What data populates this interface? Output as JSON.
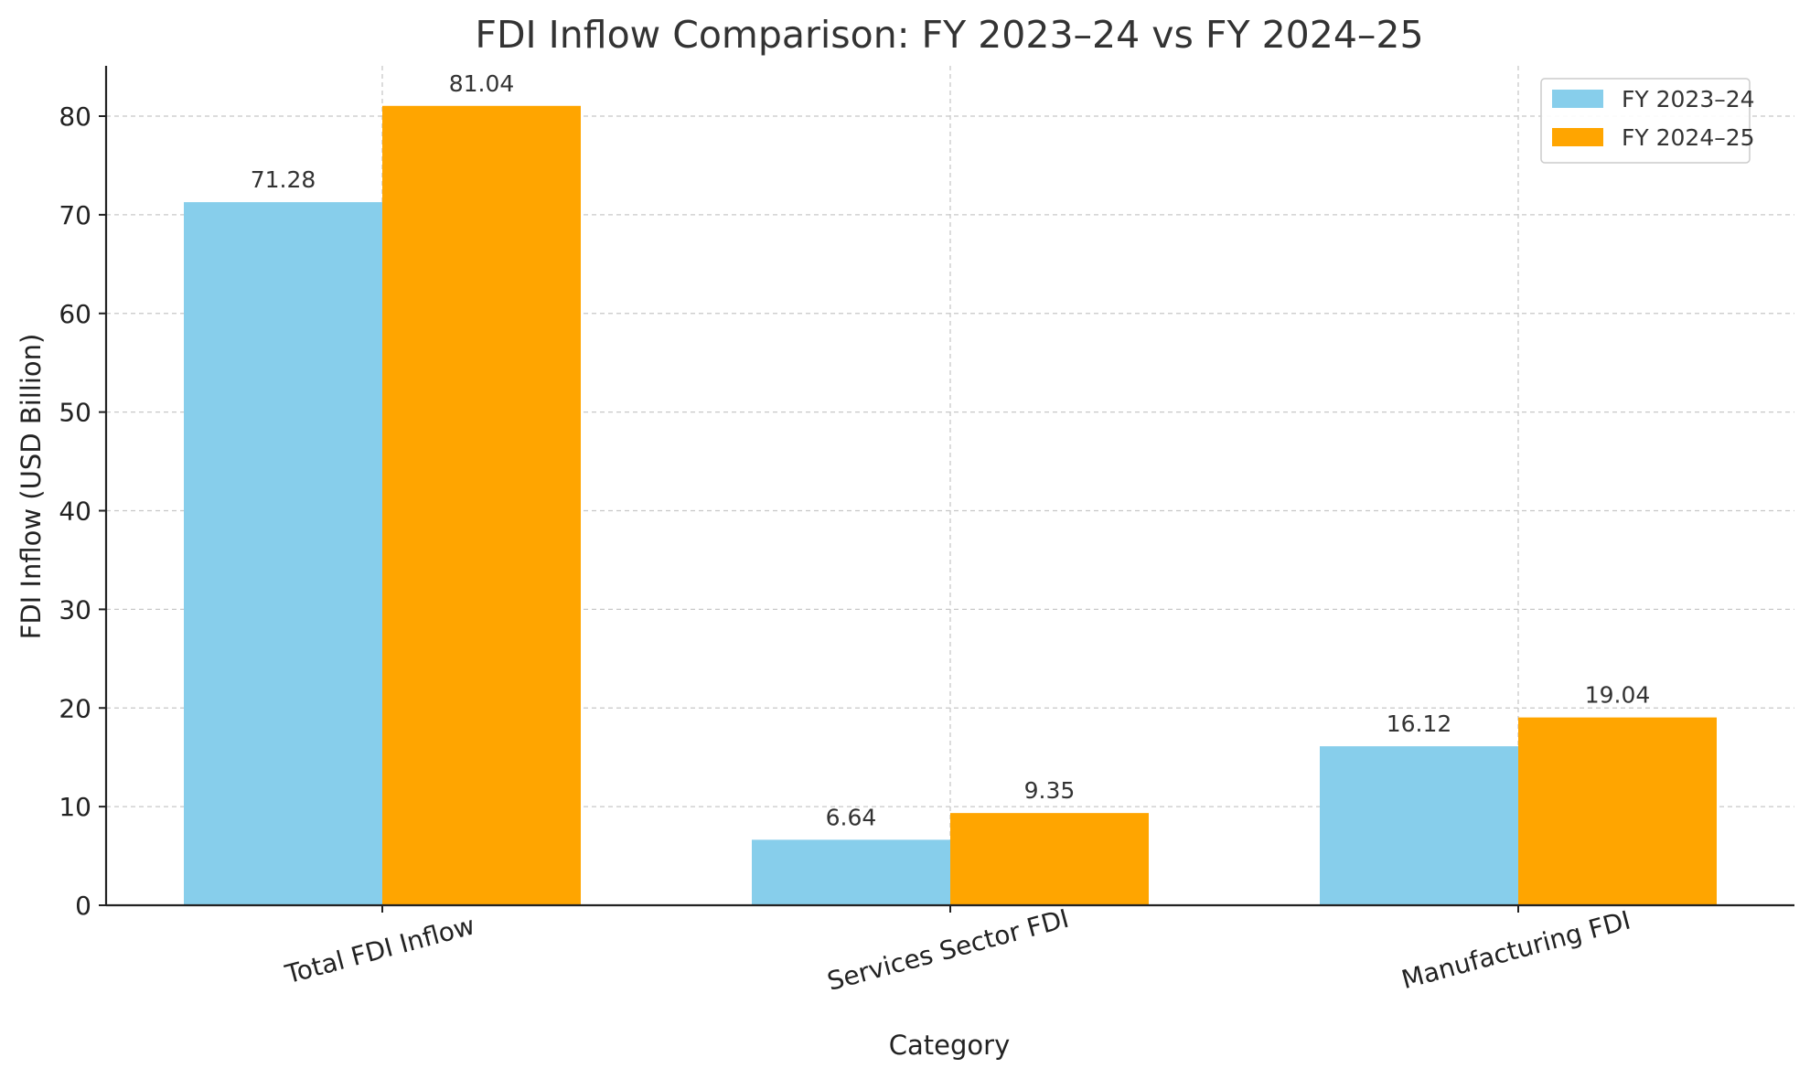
{
  "chart_data": {
    "type": "bar",
    "title": "FDI Inflow Comparison: FY 2023–24 vs FY 2024–25",
    "xlabel": "Category",
    "ylabel": "FDI Inflow (USD Billion)",
    "categories": [
      "Total FDI Inflow",
      "Services Sector FDI",
      "Manufacturing FDI"
    ],
    "series": [
      {
        "name": "FY 2023–24",
        "color": "#87ceeb",
        "values": [
          71.28,
          6.64,
          16.12
        ],
        "labels": [
          "71.28",
          "6.64",
          "16.12"
        ]
      },
      {
        "name": "FY 2024–25",
        "color": "#ffa500",
        "values": [
          81.04,
          9.35,
          19.04
        ],
        "labels": [
          "81.04",
          "9.35",
          "19.04"
        ]
      }
    ],
    "yticks": [
      0,
      10,
      20,
      30,
      40,
      50,
      60,
      70,
      80
    ],
    "ytick_labels": [
      "0",
      "10",
      "20",
      "30",
      "40",
      "50",
      "60",
      "70",
      "80"
    ],
    "ylim": [
      0,
      85.1
    ],
    "grid": true,
    "legend_position": "top-right"
  }
}
